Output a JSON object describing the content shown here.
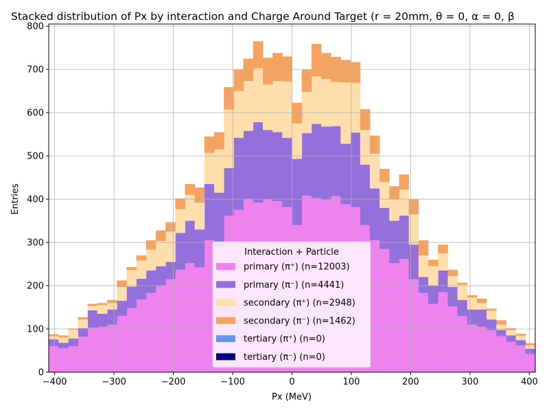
{
  "chart_data": {
    "type": "bar",
    "stacked": true,
    "title": "Stacked distribution of Px by interaction and Charge Around Target (r = 20mm, θ = 0, α = 0, β",
    "xlabel": "Px (MeV)",
    "ylabel": "Entries",
    "xlim": [
      -410,
      410
    ],
    "ylim": [
      0,
      805
    ],
    "grid": true,
    "xticks": [
      -400,
      -300,
      -200,
      -100,
      0,
      100,
      200,
      300,
      400
    ],
    "xtick_labels": [
      "−400",
      "−300",
      "−200",
      "−100",
      "0",
      "100",
      "200",
      "300",
      "400"
    ],
    "yticks": [
      0,
      100,
      200,
      300,
      400,
      500,
      600,
      700,
      800
    ],
    "ytick_labels": [
      "0",
      "100",
      "200",
      "300",
      "400",
      "500",
      "600",
      "700",
      "800"
    ],
    "bin_edges_start": -410,
    "bin_width": 16.4,
    "legend": {
      "title": "Interaction + Particle",
      "placement": "lower-center"
    },
    "series": [
      {
        "name": "primary (π⁺) (n=12003)",
        "color": "#ee82ee",
        "values": [
          60,
          55,
          60,
          82,
          103,
          105,
          110,
          130,
          148,
          168,
          183,
          200,
          215,
          237,
          252,
          242,
          305,
          290,
          362,
          375,
          400,
          392,
          400,
          395,
          382,
          340,
          408,
          402,
          398,
          407,
          388,
          382,
          340,
          305,
          285,
          252,
          262,
          215,
          183,
          158,
          185,
          152,
          130,
          110,
          105,
          97,
          83,
          70,
          62,
          42
        ]
      },
      {
        "name": "primary (π⁻) (n=4441)",
        "color": "#9370db",
        "values": [
          16,
          13,
          18,
          20,
          40,
          30,
          35,
          35,
          50,
          48,
          52,
          45,
          40,
          85,
          98,
          88,
          130,
          125,
          110,
          167,
          158,
          186,
          160,
          160,
          160,
          153,
          145,
          172,
          170,
          162,
          140,
          172,
          140,
          120,
          95,
          98,
          100,
          80,
          37,
          42,
          50,
          45,
          37,
          35,
          40,
          25,
          15,
          15,
          12,
          12
        ]
      },
      {
        "name": "secondary (π⁺) (n=2948)",
        "color": "#ffdead",
        "values": [
          7,
          12,
          20,
          20,
          10,
          20,
          15,
          32,
          38,
          42,
          48,
          58,
          70,
          55,
          60,
          62,
          72,
          100,
          135,
          108,
          115,
          125,
          105,
          118,
          130,
          82,
          95,
          110,
          110,
          102,
          142,
          115,
          80,
          80,
          60,
          50,
          60,
          70,
          50,
          45,
          40,
          25,
          35,
          28,
          15,
          20,
          12,
          12,
          10,
          8
        ]
      },
      {
        "name": "secondary (π⁻) (n=1462)",
        "color": "#f4a460",
        "values": [
          5,
          5,
          3,
          5,
          5,
          5,
          7,
          15,
          7,
          12,
          22,
          25,
          22,
          25,
          25,
          35,
          38,
          40,
          52,
          50,
          52,
          62,
          62,
          65,
          58,
          48,
          52,
          75,
          60,
          58,
          52,
          48,
          48,
          42,
          30,
          30,
          35,
          35,
          35,
          15,
          20,
          15,
          5,
          5,
          10,
          5,
          10,
          5,
          5,
          5
        ]
      },
      {
        "name": "tertiary (π⁺) (n=0)",
        "color": "#6495ed",
        "values": []
      },
      {
        "name": "tertiary (π⁻) (n=0)",
        "color": "#000080",
        "values": []
      }
    ]
  }
}
